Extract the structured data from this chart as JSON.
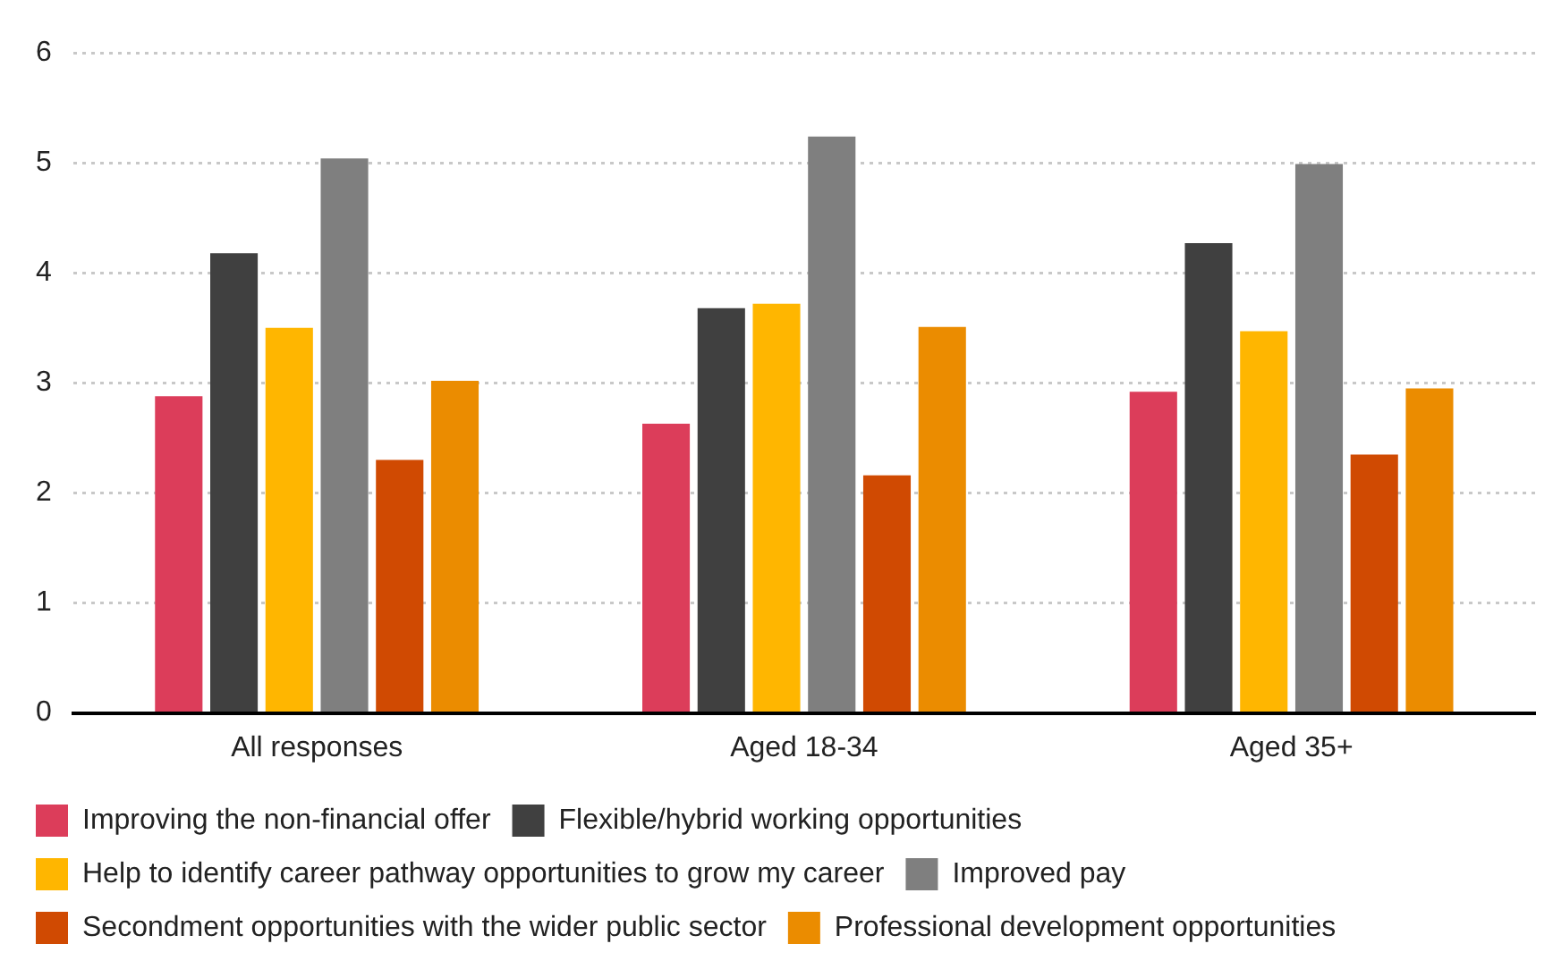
{
  "chart_data": {
    "type": "bar",
    "categories": [
      "All responses",
      "Aged 18-34",
      "Aged 35+"
    ],
    "series": [
      {
        "name": "Improving the non-financial offer",
        "color": "#dc3d5a",
        "values": [
          2.88,
          2.63,
          2.92
        ]
      },
      {
        "name": "Flexible/hybrid working opportunities",
        "color": "#404040",
        "values": [
          4.18,
          3.68,
          4.27
        ]
      },
      {
        "name": "Help to identify career pathway opportunities to grow my career",
        "color": "#ffb600",
        "values": [
          3.5,
          3.72,
          3.47
        ]
      },
      {
        "name": "Improved pay",
        "color": "#7f7f7f",
        "values": [
          5.04,
          5.24,
          4.99
        ]
      },
      {
        "name": "Secondment opportunities with the wider public sector",
        "color": "#d04a02",
        "values": [
          2.3,
          2.16,
          2.35
        ]
      },
      {
        "name": "Professional development opportunities",
        "color": "#eb8c00",
        "values": [
          3.02,
          3.51,
          2.95
        ]
      }
    ],
    "ylim": [
      0,
      6
    ],
    "yticks": [
      0,
      1,
      2,
      3,
      4,
      5,
      6
    ],
    "grid": "y",
    "legend": "bottom"
  }
}
